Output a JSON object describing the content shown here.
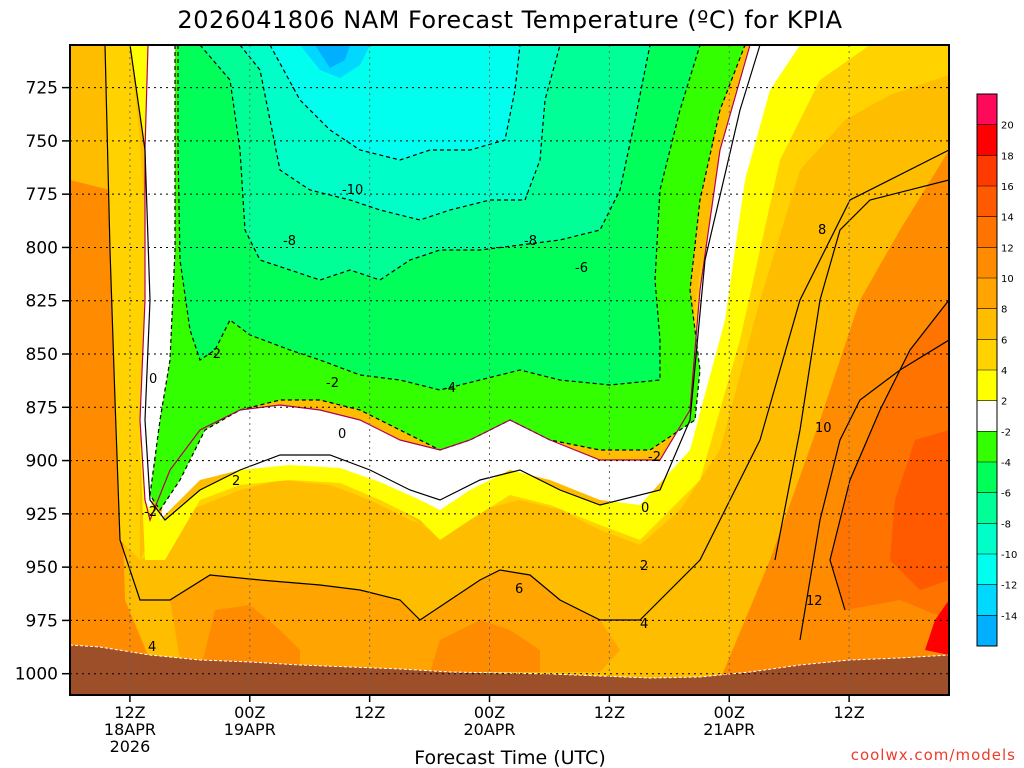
{
  "chart_data": {
    "type": "heatmap",
    "title": "2026041806 NAM Forecast Temperature (ºC) for KPIA",
    "xlabel": "Forecast Time (UTC)",
    "ylabel": "",
    "credit": "coolwx.com/models",
    "y_ticks": [
      "725",
      "750",
      "775",
      "800",
      "825",
      "850",
      "875",
      "900",
      "925",
      "950",
      "975",
      "1000"
    ],
    "ylim": [
      705,
      1010
    ],
    "x_ticks": [
      {
        "hour": 12,
        "lines": [
          "12Z",
          "18APR",
          "2026"
        ]
      },
      {
        "hour": 24,
        "lines": [
          "00Z",
          "19APR"
        ]
      },
      {
        "hour": 36,
        "lines": [
          "12Z"
        ]
      },
      {
        "hour": 48,
        "lines": [
          "00Z",
          "20APR"
        ]
      },
      {
        "hour": 60,
        "lines": [
          "12Z"
        ]
      },
      {
        "hour": 72,
        "lines": [
          "00Z",
          "21APR"
        ]
      },
      {
        "hour": 84,
        "lines": [
          "12Z"
        ]
      }
    ],
    "xlim": [
      6,
      94
    ],
    "colorbar": {
      "labels": [
        "20",
        "18",
        "16",
        "14",
        "12",
        "10",
        "8",
        "6",
        "4",
        "2",
        "-2",
        "-4",
        "-6",
        "-8",
        "-10",
        "-12",
        "-14"
      ],
      "colors": [
        "#ff0a5a",
        "#ff0000",
        "#ff3a00",
        "#ff5a00",
        "#ff7300",
        "#ff8c00",
        "#ffa400",
        "#ffbd00",
        "#ffd200",
        "#ffff00",
        "#ffffff",
        "#33ff00",
        "#00ff59",
        "#00ff96",
        "#00ffc8",
        "#00ffee",
        "#00d8ff",
        "#00b0ff"
      ]
    },
    "contour_labels": [
      "-10",
      "-8",
      "-8",
      "-6",
      "-2",
      "-2",
      "-4",
      "0",
      "0",
      "0",
      "-2",
      "-2",
      "-2",
      "2",
      "2",
      "4",
      "6",
      "4",
      "8",
      "10",
      "12"
    ],
    "colors": {
      "terrain": "#9c4f28",
      "zero_line": "#b0005a"
    }
  }
}
